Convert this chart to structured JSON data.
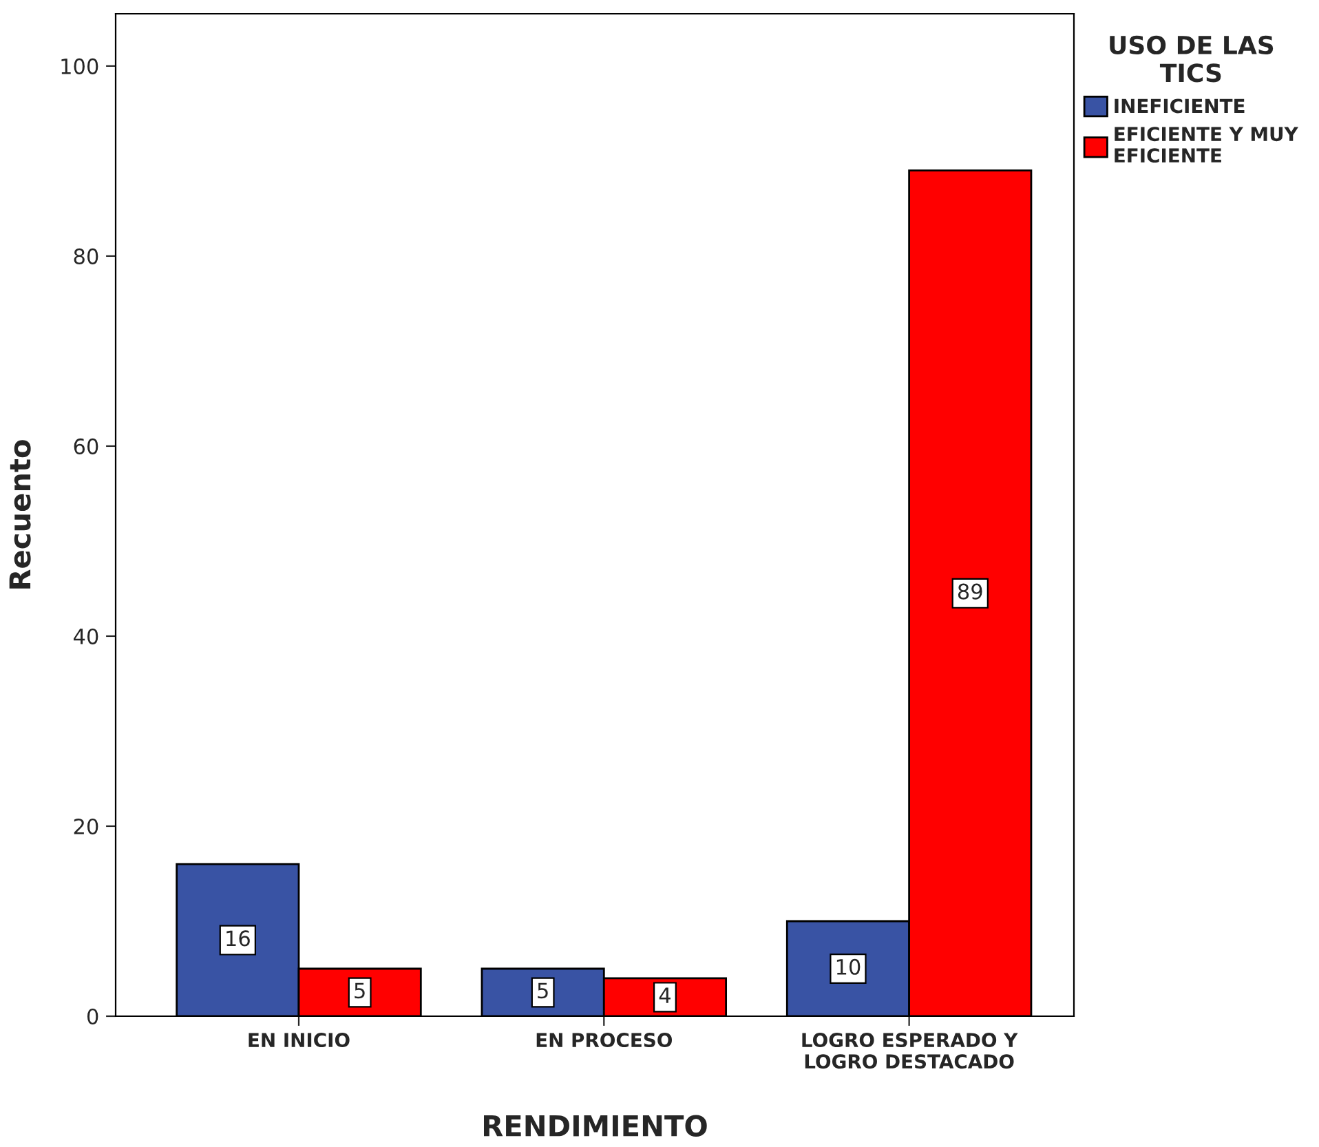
{
  "chart_data": {
    "type": "bar",
    "xlabel": "RENDIMIENTO",
    "ylabel": "Recuento",
    "legend_title": "USO DE LAS\nTICS",
    "categories": [
      "EN INICIO",
      "EN PROCESO",
      "LOGRO ESPERADO Y\nLOGRO DESTACADO"
    ],
    "series": [
      {
        "name": "INEFICIENTE",
        "color": "#3953a4",
        "values": [
          16,
          5,
          10
        ]
      },
      {
        "name": "EFICIENTE Y MUY\nEFICIENTE",
        "color": "#ff0000",
        "values": [
          5,
          4,
          89
        ]
      }
    ],
    "ylim": [
      0,
      105.5
    ],
    "yticks": [
      0,
      20,
      40,
      60,
      80,
      100
    ],
    "grid": false,
    "legend": "right",
    "data_labels": true
  }
}
